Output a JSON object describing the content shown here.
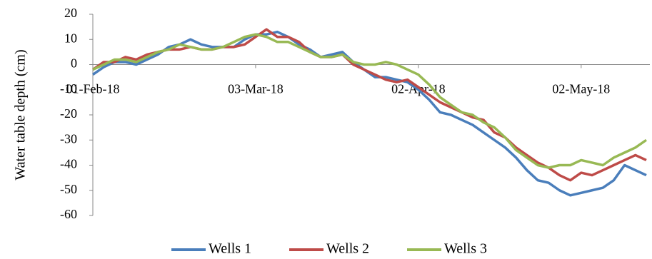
{
  "chart_data": {
    "type": "line",
    "y_label": "Water table depth (cm)",
    "x": [
      "01-Feb-18",
      "03-Feb-18",
      "05-Feb-18",
      "07-Feb-18",
      "09-Feb-18",
      "11-Feb-18",
      "13-Feb-18",
      "15-Feb-18",
      "17-Feb-18",
      "19-Feb-18",
      "21-Feb-18",
      "23-Feb-18",
      "25-Feb-18",
      "27-Feb-18",
      "01-Mar-18",
      "03-Mar-18",
      "05-Mar-18",
      "07-Mar-18",
      "09-Mar-18",
      "11-Mar-18",
      "13-Mar-18",
      "15-Mar-18",
      "17-Mar-18",
      "19-Mar-18",
      "21-Mar-18",
      "23-Mar-18",
      "25-Mar-18",
      "27-Mar-18",
      "29-Mar-18",
      "31-Mar-18",
      "02-Apr-18",
      "04-Apr-18",
      "06-Apr-18",
      "08-Apr-18",
      "10-Apr-18",
      "12-Apr-18",
      "14-Apr-18",
      "16-Apr-18",
      "18-Apr-18",
      "20-Apr-18",
      "22-Apr-18",
      "24-Apr-18",
      "26-Apr-18",
      "28-Apr-18",
      "30-Apr-18",
      "02-May-18",
      "04-May-18",
      "06-May-18",
      "08-May-18",
      "10-May-18",
      "12-May-18",
      "14-May-18"
    ],
    "xticks": [
      "01-Feb-18",
      "03-Mar-18",
      "02-Apr-18",
      "02-May-18"
    ],
    "series": [
      {
        "name": "Wells 1",
        "color": "#4a7ebb",
        "values": [
          -4,
          -1,
          1,
          1,
          0,
          2,
          4,
          7,
          8,
          10,
          8,
          7,
          7,
          7,
          10,
          12,
          12,
          13,
          11,
          8,
          6,
          3,
          4,
          5,
          1,
          -2,
          -5,
          -5,
          -6,
          -7,
          -10,
          -14,
          -19,
          -20,
          -22,
          -24,
          -27,
          -30,
          -33,
          -37,
          -42,
          -46,
          -47,
          -50,
          -52,
          -51,
          -50,
          -49,
          -46,
          -40,
          -42,
          -44
        ]
      },
      {
        "name": "Wells 2",
        "color": "#be4b48",
        "values": [
          -2,
          1,
          1,
          3,
          2,
          4,
          5,
          6,
          6,
          7,
          6,
          6,
          7,
          7,
          8,
          11,
          14,
          11,
          11,
          9,
          5,
          3,
          3,
          4,
          0,
          -2,
          -4,
          -6,
          -7,
          -6,
          -9,
          -12,
          -15,
          -17,
          -19,
          -21,
          -22,
          -27,
          -29,
          -33,
          -36,
          -39,
          -41,
          -44,
          -46,
          -43,
          -44,
          -42,
          -40,
          -38,
          -36,
          -38
        ]
      },
      {
        "name": "Wells 3",
        "color": "#98b954",
        "values": [
          -2,
          0,
          2,
          2,
          1,
          3,
          5,
          6,
          8,
          7,
          6,
          6,
          7,
          9,
          11,
          12,
          11,
          9,
          9,
          7,
          5,
          3,
          3,
          4,
          1,
          0,
          0,
          1,
          0,
          -2,
          -4,
          -8,
          -13,
          -16,
          -19,
          -20,
          -23,
          -25,
          -29,
          -34,
          -37,
          -40,
          -41,
          -40,
          -40,
          -38,
          -39,
          -40,
          -37,
          -35,
          -33,
          -30
        ]
      }
    ],
    "ylim": [
      -60,
      20
    ],
    "yticks": [
      -60,
      -50,
      -40,
      -30,
      -20,
      -10,
      0,
      10,
      20
    ]
  }
}
